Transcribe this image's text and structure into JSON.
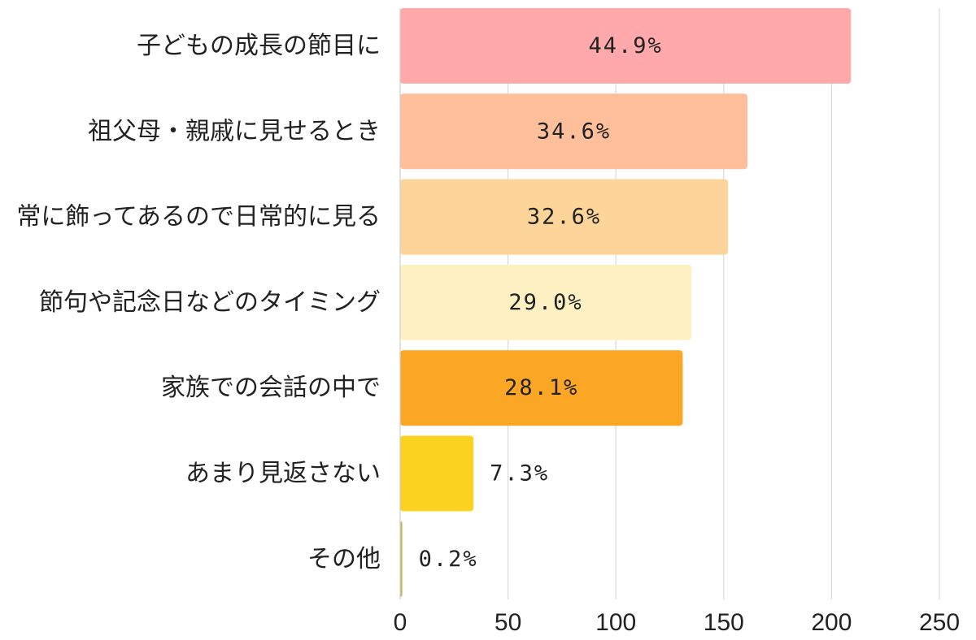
{
  "chart_data": {
    "type": "bar",
    "orientation": "horizontal",
    "categories": [
      "子どもの成長の節目に",
      "祖父母・親戚に見せるとき",
      "常に飾ってあるので日常的に見る",
      "節句や記念日などのタイミング",
      "家族での会話の中で",
      "あまり見返さない",
      "その他"
    ],
    "values": [
      209,
      161,
      152,
      135,
      131,
      34,
      1
    ],
    "data_labels": [
      "44.9%",
      "34.6%",
      "32.6%",
      "29.0%",
      "28.1%",
      "7.3%",
      "0.2%"
    ],
    "colors": [
      "#FFA9AB",
      "#FFBF9B",
      "#FDD59B",
      "#FDF1C3",
      "#FCA625",
      "#FCD220",
      "#C4B85A"
    ],
    "x_ticks": [
      "0",
      "50",
      "100",
      "150",
      "200",
      "250"
    ],
    "xlim": [
      0,
      250
    ],
    "grid": true,
    "legend": false
  }
}
